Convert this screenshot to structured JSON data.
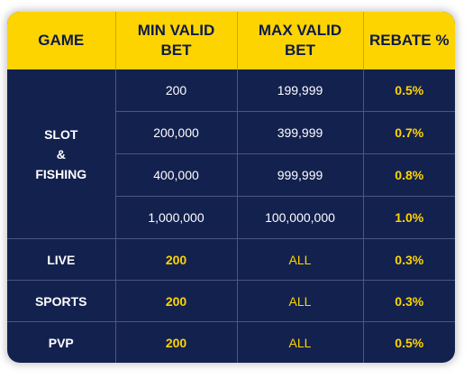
{
  "table": {
    "headers": {
      "game": "GAME",
      "min_bet_line1": "MIN VALID",
      "min_bet_line2": "BET",
      "max_bet_line1": "MAX VALID",
      "max_bet_line2": "BET",
      "rebate": "REBATE %"
    },
    "slot_group": {
      "label_line1": "SLOT",
      "label_line2": "&",
      "label_line3": "FISHING",
      "tiers": [
        {
          "min": "200",
          "max": "199,999",
          "rebate": "0.5%"
        },
        {
          "min": "200,000",
          "max": "399,999",
          "rebate": "0.7%"
        },
        {
          "min": "400,000",
          "max": "999,999",
          "rebate": "0.8%"
        },
        {
          "min": "1,000,000",
          "max": "100,000,000",
          "rebate": "1.0%"
        }
      ]
    },
    "rows": [
      {
        "game": "LIVE",
        "min": "200",
        "max": "ALL",
        "rebate": "0.3%"
      },
      {
        "game": "SPORTS",
        "min": "200",
        "max": "ALL",
        "rebate": "0.3%"
      },
      {
        "game": "PVP",
        "min": "200",
        "max": "ALL",
        "rebate": "0.5%"
      }
    ]
  },
  "colors": {
    "header_bg": "#fed400",
    "body_bg": "#13214f",
    "accent_text": "#fed400"
  }
}
